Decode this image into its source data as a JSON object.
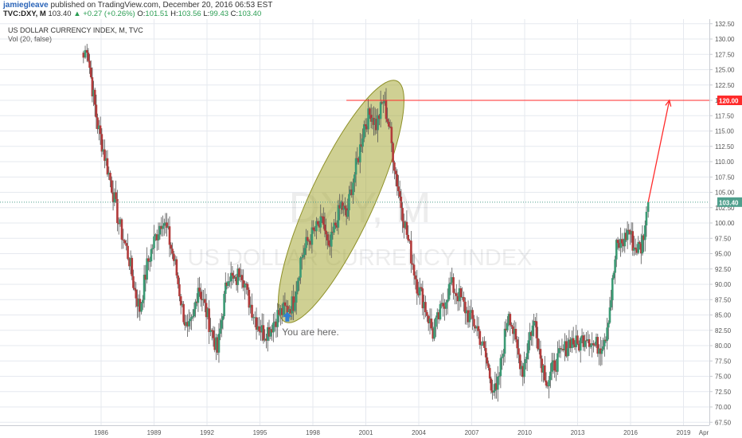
{
  "header": {
    "username": "jamiegleave",
    "published_text": " published on TradingView.com, December 20, 2016 06:53 EST",
    "symbol": "TVC:DXY, M",
    "last": "103.40",
    "change": "+0.27 (+0.26%)",
    "open_label": "O:",
    "open": "101.51",
    "high_label": "H:",
    "high": "103.56",
    "low_label": "L:",
    "low": "99.43",
    "close_label": "C:",
    "close": "103.40"
  },
  "chart_legend": {
    "title": "US DOLLAR CURRENCY INDEX, M, TVC",
    "volume": "Vol (20, false)"
  },
  "watermark": {
    "symbol": "DXY, M",
    "name": "US DOLLAR CURRENCY INDEX"
  },
  "annotations": {
    "note": "You are here.",
    "target_level_label": "120.00",
    "current_price_label": "103.40"
  },
  "colors": {
    "up": "#3b9a74",
    "down": "#b23b3b",
    "target_line": "#ff2b2b",
    "current_line": "#4f9f8c",
    "ellipse_fill": "#a8aa3a",
    "arrow_blue": "#2f7fd3",
    "grid": "#e6e9ef",
    "axis_text": "#555555"
  },
  "chart_data": {
    "type": "candlestick",
    "timeframe": "monthly",
    "x_ticks": [
      "1986",
      "1989",
      "1992",
      "1995",
      "1998",
      "2001",
      "2004",
      "2007",
      "2010",
      "2013",
      "2016",
      "2019",
      "Apr"
    ],
    "y_ticks": [
      "67.50",
      "70.00",
      "72.50",
      "75.00",
      "77.50",
      "80.00",
      "82.50",
      "85.00",
      "87.50",
      "90.00",
      "92.50",
      "95.00",
      "97.50",
      "100.00",
      "102.50",
      "105.00",
      "107.50",
      "110.00",
      "112.50",
      "115.00",
      "117.50",
      "120.00",
      "122.50",
      "125.00",
      "127.50",
      "130.00",
      "132.50"
    ],
    "ylim": [
      67.5,
      132.5
    ],
    "xlim": [
      1983.2,
      2020.9
    ],
    "price_path": [
      [
        1985.0,
        127
      ],
      [
        1985.2,
        129
      ],
      [
        1985.5,
        122
      ],
      [
        1985.8,
        116
      ],
      [
        1986.2,
        111
      ],
      [
        1986.6,
        106
      ],
      [
        1987.0,
        100
      ],
      [
        1987.6,
        94
      ],
      [
        1987.9,
        89
      ],
      [
        1988.2,
        86
      ],
      [
        1988.6,
        93
      ],
      [
        1989.0,
        97
      ],
      [
        1989.5,
        101
      ],
      [
        1989.8,
        98
      ],
      [
        1990.2,
        93
      ],
      [
        1990.6,
        86
      ],
      [
        1990.9,
        82
      ],
      [
        1991.2,
        84
      ],
      [
        1991.5,
        90
      ],
      [
        1991.8,
        87
      ],
      [
        1992.2,
        83
      ],
      [
        1992.6,
        79
      ],
      [
        1992.9,
        86
      ],
      [
        1993.2,
        92
      ],
      [
        1993.6,
        90
      ],
      [
        1993.9,
        93
      ],
      [
        1994.3,
        88
      ],
      [
        1994.8,
        84
      ],
      [
        1995.2,
        82
      ],
      [
        1995.6,
        83
      ],
      [
        1996.0,
        85
      ],
      [
        1996.5,
        86
      ],
      [
        1996.9,
        87
      ],
      [
        1997.3,
        94
      ],
      [
        1997.7,
        97
      ],
      [
        1998.2,
        99
      ],
      [
        1998.6,
        100
      ],
      [
        1998.9,
        95
      ],
      [
        1999.2,
        99
      ],
      [
        1999.6,
        103
      ],
      [
        1999.9,
        101
      ],
      [
        2000.2,
        106
      ],
      [
        2000.6,
        111
      ],
      [
        2000.9,
        116
      ],
      [
        2001.3,
        118
      ],
      [
        2001.6,
        116
      ],
      [
        2002.0,
        120
      ],
      [
        2002.3,
        116
      ],
      [
        2002.7,
        108
      ],
      [
        2003.0,
        103
      ],
      [
        2003.4,
        97
      ],
      [
        2003.9,
        90
      ],
      [
        2004.3,
        87
      ],
      [
        2004.8,
        82
      ],
      [
        2005.3,
        86
      ],
      [
        2005.8,
        90
      ],
      [
        2006.3,
        88
      ],
      [
        2006.8,
        85
      ],
      [
        2007.3,
        83
      ],
      [
        2007.8,
        78
      ],
      [
        2008.1,
        74
      ],
      [
        2008.4,
        72
      ],
      [
        2008.8,
        80
      ],
      [
        2009.1,
        86
      ],
      [
        2009.5,
        80
      ],
      [
        2009.9,
        76
      ],
      [
        2010.3,
        82
      ],
      [
        2010.6,
        84
      ],
      [
        2010.9,
        78
      ],
      [
        2011.3,
        74
      ],
      [
        2011.7,
        77
      ],
      [
        2012.2,
        79
      ],
      [
        2012.6,
        81
      ],
      [
        2013.0,
        80
      ],
      [
        2013.5,
        82
      ],
      [
        2013.9,
        80
      ],
      [
        2014.3,
        80
      ],
      [
        2014.6,
        82
      ],
      [
        2014.9,
        88
      ],
      [
        2015.2,
        96
      ],
      [
        2015.6,
        97
      ],
      [
        2015.9,
        99
      ],
      [
        2016.2,
        96
      ],
      [
        2016.6,
        96
      ],
      [
        2016.9,
        101
      ],
      [
        2017.0,
        103.4
      ]
    ],
    "target_level": 120.0,
    "current_level": 103.4,
    "projection": [
      [
        2017.0,
        103.4
      ],
      [
        2018.2,
        120.0
      ]
    ],
    "highlight_ellipse": {
      "x": [
        1996.7,
        2002.5
      ],
      "y": [
        85.5,
        121.5
      ]
    }
  }
}
